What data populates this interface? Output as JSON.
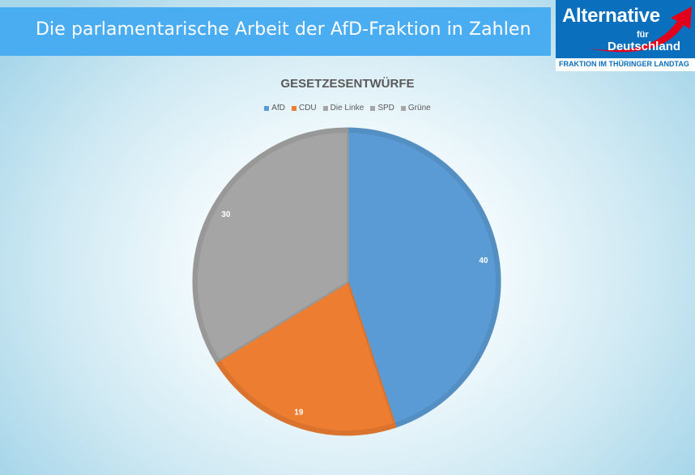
{
  "header": {
    "title": "Die parlamentarische Arbeit der AfD-Fraktion in Zahlen"
  },
  "logo": {
    "main": "Alternative",
    "fuer": "für",
    "de": "Deutschland",
    "sub": "FRAKTION IM THÜRINGER LANDTAG"
  },
  "chart_data": {
    "type": "pie",
    "title": "GESETZESENTWÜRFE",
    "legend_position": "top",
    "categories": [
      "AfD",
      "CDU",
      "Die Linke",
      "SPD",
      "Grüne"
    ],
    "values": [
      40,
      19,
      30,
      null,
      null
    ],
    "data_labels": [
      "40",
      "19",
      "30",
      "",
      ""
    ],
    "colors": [
      "#5b9bd5",
      "#ed7d31",
      "#a5a5a5",
      "#a5a5a5",
      "#a5a5a5"
    ]
  }
}
